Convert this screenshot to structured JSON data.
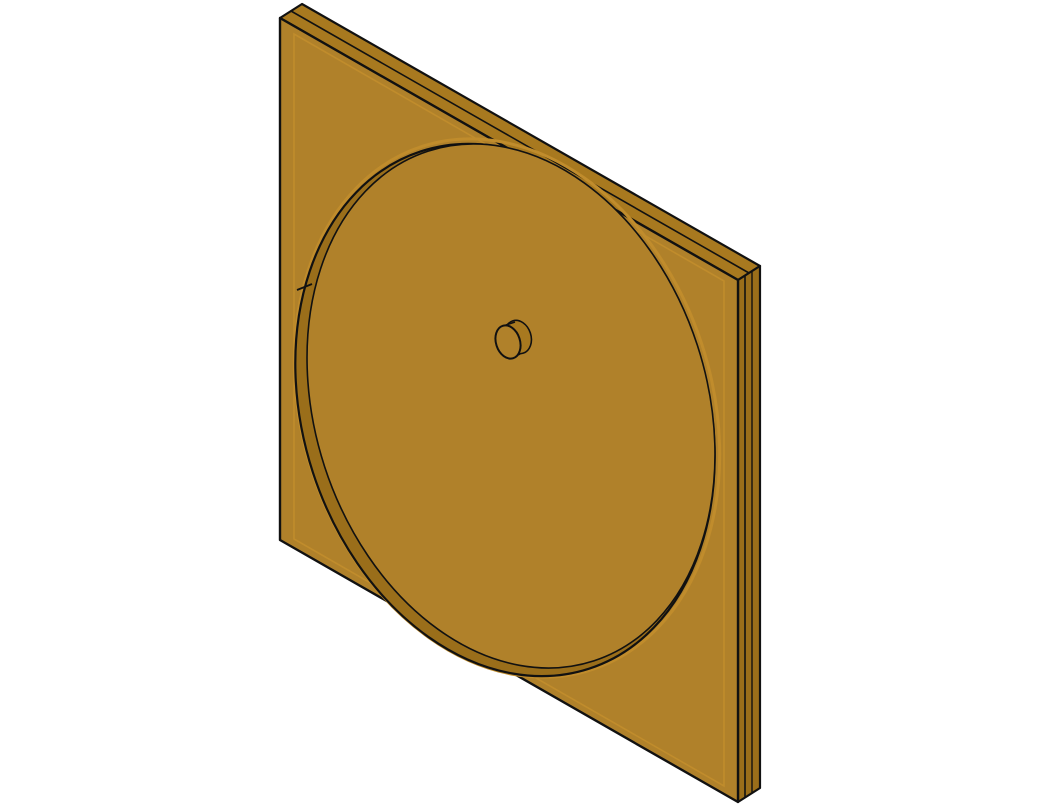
{
  "figure": {
    "subject": "square-plate-with-circular-recess-and-center-pin",
    "view": "isometric",
    "colors": {
      "background": "#ffffff",
      "face": "#b0812a",
      "edge_face": "#a8791f",
      "edge_face_dark": "#9a6e1a",
      "bevel": "#c08c2c",
      "outline": "#111111"
    }
  }
}
